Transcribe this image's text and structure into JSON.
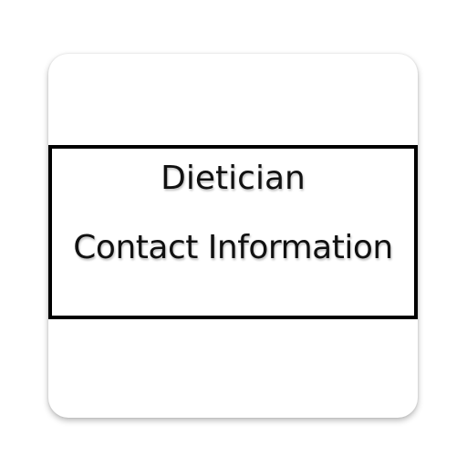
{
  "icon": {
    "title_line_1": "Dietician",
    "title_line_2": "Contact Information",
    "background_color": "#ffffff",
    "frame_color": "#000000",
    "text_color": "#111111"
  }
}
